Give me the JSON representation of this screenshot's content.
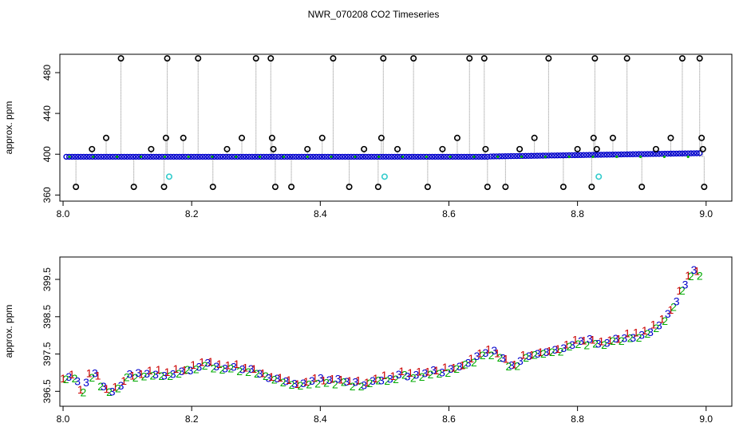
{
  "title": "NWR_070208  CO2 Timeseries",
  "chart_data": [
    {
      "type": "scatter",
      "ylabel": "approx. ppm",
      "xlim": [
        7.995,
        9.04
      ],
      "ylim": [
        354,
        498
      ],
      "xticks": [
        8.0,
        8.2,
        8.4,
        8.6,
        8.8,
        9.0
      ],
      "xtick_labels": [
        "8.0",
        "8.2",
        "8.4",
        "8.6",
        "8.8",
        "9.0"
      ],
      "yticks": [
        360,
        400,
        440,
        480
      ],
      "ytick_labels": [
        "360",
        "400",
        "440",
        "480"
      ],
      "baseline": {
        "color": "#0000cc",
        "segments": [
          {
            "x": [
              8.005,
              8.33
            ],
            "y": [
              397.5,
              397.5
            ]
          },
          {
            "x": [
              8.335,
              8.66
            ],
            "y": [
              397.5,
              397.5
            ]
          },
          {
            "x": [
              8.665,
              8.99
            ],
            "y": [
              397.8,
              401.0
            ]
          }
        ]
      },
      "spikes": {
        "color": "#000000",
        "x": [
          8.02,
          8.045,
          8.067,
          8.09,
          8.11,
          8.137,
          8.157,
          8.16,
          8.162,
          8.187,
          8.21,
          8.233,
          8.255,
          8.278,
          8.3,
          8.323,
          8.325,
          8.327,
          8.33,
          8.355,
          8.38,
          8.403,
          8.42,
          8.445,
          8.468,
          8.49,
          8.495,
          8.498,
          8.52,
          8.545,
          8.567,
          8.59,
          8.613,
          8.632,
          8.655,
          8.657,
          8.66,
          8.688,
          8.71,
          8.733,
          8.755,
          8.778,
          8.8,
          8.822,
          8.825,
          8.827,
          8.83,
          8.855,
          8.877,
          8.9,
          8.922,
          8.945,
          8.963,
          8.99,
          8.993,
          8.995,
          8.997
        ],
        "y": [
          368,
          405,
          416,
          494,
          368,
          405,
          368,
          416,
          494,
          416,
          494,
          368,
          405,
          416,
          494,
          494,
          416,
          405,
          368,
          368,
          405,
          416,
          494,
          368,
          405,
          368,
          416,
          494,
          405,
          494,
          368,
          405,
          416,
          494,
          494,
          405,
          368,
          368,
          405,
          416,
          494,
          368,
          405,
          368,
          416,
          494,
          405,
          416,
          494,
          368,
          405,
          416,
          494,
          494,
          416,
          405,
          368
        ]
      },
      "cyan_points": {
        "color": "#33cccc",
        "x": [
          8.165,
          8.5,
          8.833
        ],
        "y": [
          378,
          378,
          378
        ]
      }
    },
    {
      "type": "scatter",
      "ylabel": "approx. ppm",
      "xlim": [
        7.995,
        9.04
      ],
      "ylim": [
        396.1,
        400.1
      ],
      "xticks": [
        8.0,
        8.2,
        8.4,
        8.6,
        8.8,
        9.0
      ],
      "xtick_labels": [
        "8.0",
        "8.2",
        "8.4",
        "8.6",
        "8.8",
        "9.0"
      ],
      "yticks": [
        396.5,
        397.5,
        398.5,
        399.5
      ],
      "ytick_labels": [
        "396.5",
        "397.5",
        "398.5",
        "399.5"
      ],
      "marker_labels": [
        "1",
        "2",
        "3"
      ],
      "marker_colors": [
        "#cc0000",
        "#00aa00",
        "#0000cc"
      ],
      "series": {
        "x": [
          8.0,
          8.01,
          8.02,
          8.03,
          8.04,
          8.05,
          8.06,
          8.07,
          8.08,
          8.09,
          8.1,
          8.12,
          8.14,
          8.16,
          8.18,
          8.2,
          8.22,
          8.24,
          8.26,
          8.28,
          8.3,
          8.32,
          8.34,
          8.36,
          8.38,
          8.4,
          8.42,
          8.44,
          8.46,
          8.48,
          8.5,
          8.52,
          8.54,
          8.56,
          8.58,
          8.6,
          8.62,
          8.64,
          8.66,
          8.68,
          8.7,
          8.72,
          8.74,
          8.76,
          8.78,
          8.8,
          8.82,
          8.84,
          8.86,
          8.88,
          8.9,
          8.92,
          8.94,
          8.95,
          8.96,
          8.97,
          8.98,
          8.99
        ],
        "y": [
          396.8,
          396.95,
          396.9,
          396.4,
          396.95,
          396.95,
          396.7,
          396.5,
          396.55,
          396.7,
          396.9,
          396.95,
          397.0,
          396.95,
          397.05,
          397.1,
          397.25,
          397.2,
          397.15,
          397.1,
          397.05,
          396.9,
          396.75,
          396.7,
          396.75,
          396.8,
          396.8,
          396.75,
          396.7,
          396.75,
          396.85,
          396.95,
          396.95,
          397.0,
          397.05,
          397.1,
          397.2,
          397.35,
          397.6,
          397.5,
          397.15,
          397.45,
          397.5,
          397.55,
          397.65,
          397.8,
          397.85,
          397.75,
          397.9,
          397.95,
          398.05,
          398.2,
          398.55,
          398.8,
          399.15,
          399.45,
          399.8,
          399.6
        ]
      }
    }
  ]
}
